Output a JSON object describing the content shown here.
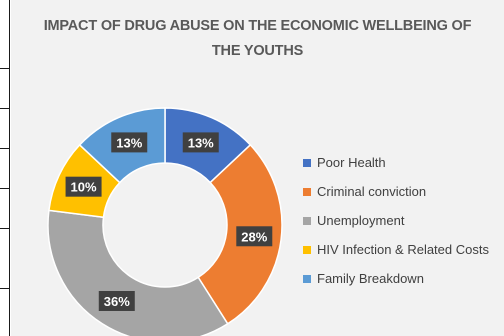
{
  "chart_data": {
    "type": "pie",
    "donut": true,
    "title": "IMPACT OF DRUG ABUSE ON THE ECONOMIC WELLBEING OF THE YOUTHS",
    "title_lines": [
      "IMPACT OF DRUG ABUSE ON THE ECONOMIC WELLBEING OF",
      "THE YOUTHS"
    ],
    "categories": [
      "Poor Health",
      "Criminal conviction",
      "Unemployment",
      "HIV Infection & Related Costs",
      "Family Breakdown"
    ],
    "values": [
      13,
      28,
      36,
      10,
      13
    ],
    "data_labels": [
      "13%",
      "28%",
      "36%",
      "10%",
      "13%"
    ],
    "colors": [
      "#4472c4",
      "#ed7d31",
      "#a5a5a5",
      "#ffc000",
      "#5b9bd5"
    ],
    "legend_position": "right"
  }
}
